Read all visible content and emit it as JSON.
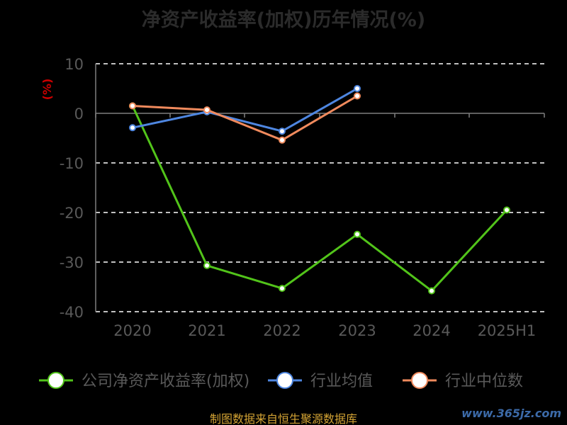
{
  "title": "净资产收益率(加权)历年情况(%)",
  "source_text": "制图数据来自恒生聚源数据库",
  "watermark": "www.365jz.com",
  "colors": {
    "company": "#52c41a",
    "industry_avg": "#4e86e0",
    "industry_median": "#f08a5d",
    "axis": "#7f7f7f",
    "tick_text": "#595959",
    "grid": "#ffffff",
    "ylabel": "#cc0000",
    "title": "#2b2b2b",
    "source": "#d3a334",
    "watermark": "#3c6aa8"
  },
  "chart_data": {
    "type": "line",
    "title": "净资产收益率(加权)历年情况(%)",
    "xlabel": "",
    "ylabel": "(%)",
    "categories": [
      "2020",
      "2021",
      "2022",
      "2023",
      "2024",
      "2025H1"
    ],
    "ylim": [
      -40,
      10
    ],
    "yticks": [
      10,
      0,
      -10,
      -20,
      -30,
      -40
    ],
    "grid": true,
    "legend_position": "bottom",
    "series": [
      {
        "name": "公司净资产收益率(加权)",
        "color": "#52c41a",
        "values": [
          1.5,
          -30.7,
          -35.3,
          -24.4,
          -35.8,
          -19.5
        ]
      },
      {
        "name": "行业均值",
        "color": "#4e86e0",
        "values": [
          -2.9,
          0.3,
          -3.6,
          5.0,
          null,
          null
        ]
      },
      {
        "name": "行业中位数",
        "color": "#f08a5d",
        "values": [
          1.5,
          0.7,
          -5.4,
          3.5,
          null,
          null
        ]
      }
    ]
  }
}
